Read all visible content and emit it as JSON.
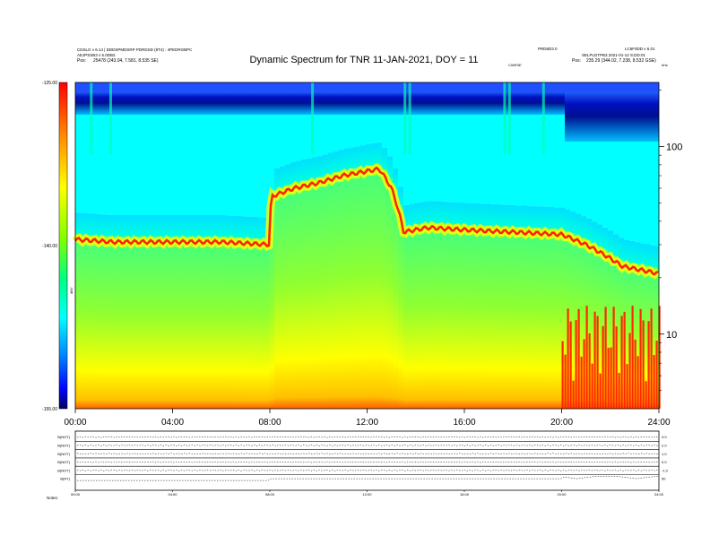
{
  "header": {
    "title": "Dynamic Spectrum for TNR 11-JAN-2021, DOY = 11",
    "left_line1": "CDSLG v 6.14 | DDDSPMDSRP PDRDSD (8T4) : 4PEDRGBPC",
    "left_line2": "AEJPSSB3 v 5.0DB2",
    "left_pos_label": "Pos:",
    "left_pos_value": "25478 (243.04, 7.581, 8.535 SE)",
    "right_line1a": "PRD6D3.0",
    "right_line1b": "LC6F0DD v 6.01",
    "right_line2": "SELPLDTPB3 2021-01-12 S:DD:01",
    "right_pos_label": "Pos:",
    "right_pos_value": "235.29 (344.02, 7.238, 8.532 GSE)",
    "corner_small": "kHz",
    "right_small_top": "CWESE"
  },
  "colorbar": {
    "ticks": [
      "-125.00",
      "-140.00",
      "-155.00"
    ],
    "label": "dBV"
  },
  "chart_data": [
    {
      "type": "heatmap",
      "title": "Dynamic Spectrum for TNR 11-JAN-2021, DOY = 11",
      "x_ticks": [
        "00:00",
        "04:00",
        "08:00",
        "12:00",
        "16:00",
        "20:00",
        "24:00"
      ],
      "x_range_hours": [
        0,
        24
      ],
      "y_scale": "log",
      "y_ticks": [
        100,
        10
      ],
      "y_range_khz": [
        4,
        220
      ],
      "intensity_range_db": [
        -155,
        -125
      ],
      "colormap": [
        "#000060",
        "#0000ff",
        "#00a0ff",
        "#00ffff",
        "#00ff80",
        "#80ff00",
        "#ffff00",
        "#ff8000",
        "#ff0000"
      ],
      "y_axis_side": "right",
      "grid": false,
      "legend": "colorbar-left",
      "plasma_line_khz": [
        {
          "hour": 0.0,
          "khz": 32
        },
        {
          "hour": 1.5,
          "khz": 31
        },
        {
          "hour": 4.0,
          "khz": 31
        },
        {
          "hour": 6.0,
          "khz": 31
        },
        {
          "hour": 8.0,
          "khz": 30
        },
        {
          "hour": 8.05,
          "khz": 54
        },
        {
          "hour": 9.0,
          "khz": 60
        },
        {
          "hour": 10.0,
          "khz": 64
        },
        {
          "hour": 11.0,
          "khz": 70
        },
        {
          "hour": 12.5,
          "khz": 76
        },
        {
          "hour": 13.0,
          "khz": 60
        },
        {
          "hour": 13.5,
          "khz": 35
        },
        {
          "hour": 14.5,
          "khz": 37
        },
        {
          "hour": 16.0,
          "khz": 36
        },
        {
          "hour": 18.0,
          "khz": 35
        },
        {
          "hour": 20.0,
          "khz": 34
        },
        {
          "hour": 21.0,
          "khz": 30
        },
        {
          "hour": 22.5,
          "khz": 23
        },
        {
          "hour": 24.0,
          "khz": 21
        }
      ]
    },
    {
      "type": "line",
      "title": "",
      "x_ticks": [
        "00:00",
        "04:00",
        "08:00",
        "12:00",
        "16:00",
        "20:00",
        "24:00"
      ],
      "x_range_hours": [
        0,
        24
      ],
      "series": [
        {
          "name": "B(NOT)",
          "right_label": "3.0"
        },
        {
          "name": "B(NOT)",
          "right_label": "2.0"
        },
        {
          "name": "B(NOT)",
          "right_label": "1.0"
        },
        {
          "name": "B(NOT)",
          "right_label": "0.0"
        },
        {
          "name": "B(NOT)",
          "right_label": "-1.0"
        },
        {
          "name": "B(NT)",
          "right_label": "50"
        }
      ],
      "footer_label": "Notes:"
    }
  ]
}
